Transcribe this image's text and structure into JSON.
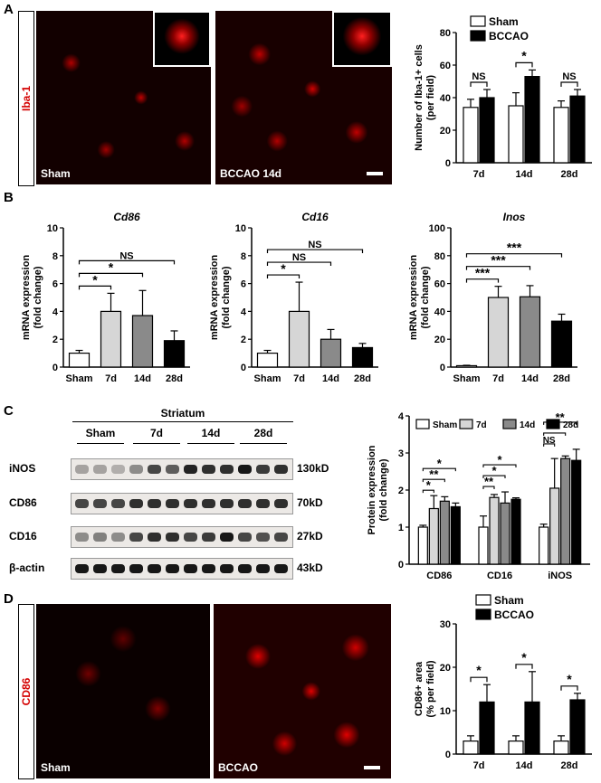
{
  "panels": {
    "A": "A",
    "B": "B",
    "C": "C",
    "D": "D"
  },
  "panelA": {
    "stain_label": "Iba-1",
    "image_sham": "Sham",
    "image_bccao": "BCCAO 14d"
  },
  "panelD": {
    "stain_label": "CD86",
    "image_sham": "Sham",
    "image_bccao": "BCCAO"
  },
  "panelC": {
    "region": "Striatum",
    "groups": [
      "Sham",
      "7d",
      "14d",
      "28d"
    ],
    "blots": [
      {
        "name": "iNOS",
        "size": "130kD"
      },
      {
        "name": "CD86",
        "size": "70kD"
      },
      {
        "name": "CD16",
        "size": "27kD"
      },
      {
        "name": "β-actin",
        "size": "43kD"
      }
    ]
  },
  "chart_data": [
    {
      "id": "A_iba1",
      "type": "bar",
      "categories": [
        "7d",
        "14d",
        "28d"
      ],
      "series": [
        {
          "name": "Sham",
          "values": [
            34,
            35,
            34
          ],
          "errors": [
            5,
            8,
            4
          ],
          "color": "#ffffff"
        },
        {
          "name": "BCCAO",
          "values": [
            40,
            53,
            41
          ],
          "errors": [
            5,
            4,
            4
          ],
          "color": "#000000"
        }
      ],
      "ylabel_lines": [
        "Number of Iba-1+ cells",
        "(per field)"
      ],
      "ylim": [
        0,
        80
      ],
      "yticks": [
        0,
        20,
        40,
        60,
        80
      ],
      "sig": [
        "NS",
        "*",
        "NS"
      ],
      "legend": "top"
    },
    {
      "id": "B_cd86",
      "type": "bar",
      "title": "Cd86",
      "categories": [
        "Sham",
        "7d",
        "14d",
        "28d"
      ],
      "values": [
        1.0,
        4.0,
        3.7,
        1.9
      ],
      "errors": [
        0.2,
        1.3,
        1.8,
        0.7
      ],
      "colors": [
        "#ffffff",
        "#d6d6d6",
        "#8a8a8a",
        "#000000"
      ],
      "ylabel_lines": [
        "mRNA expression",
        "(fold change)"
      ],
      "ylim": [
        0,
        10
      ],
      "yticks": [
        0,
        2,
        4,
        6,
        8,
        10
      ],
      "brackets": [
        {
          "from": 0,
          "to": 1,
          "label": "*"
        },
        {
          "from": 0,
          "to": 2,
          "label": "*"
        },
        {
          "from": 0,
          "to": 3,
          "label": "NS"
        }
      ]
    },
    {
      "id": "B_cd16",
      "type": "bar",
      "title": "Cd16",
      "categories": [
        "Sham",
        "7d",
        "14d",
        "28d"
      ],
      "values": [
        1.0,
        4.0,
        2.0,
        1.4
      ],
      "errors": [
        0.2,
        2.1,
        0.7,
        0.3
      ],
      "colors": [
        "#ffffff",
        "#d6d6d6",
        "#8a8a8a",
        "#000000"
      ],
      "ylabel_lines": [
        "mRNA expression",
        "(fold change)"
      ],
      "ylim": [
        0,
        10
      ],
      "yticks": [
        0,
        2,
        4,
        6,
        8,
        10
      ],
      "brackets": [
        {
          "from": 0,
          "to": 1,
          "label": "*"
        },
        {
          "from": 0,
          "to": 2,
          "label": "NS"
        },
        {
          "from": 0,
          "to": 3,
          "label": "NS"
        }
      ]
    },
    {
      "id": "B_inos",
      "type": "bar",
      "title": "Inos",
      "categories": [
        "Sham",
        "7d",
        "14d",
        "28d"
      ],
      "values": [
        1,
        50,
        50.5,
        33
      ],
      "errors": [
        0.3,
        8,
        8,
        5
      ],
      "colors": [
        "#ffffff",
        "#d6d6d6",
        "#8a8a8a",
        "#000000"
      ],
      "ylabel_lines": [
        "mRNA expression",
        "(fold change)"
      ],
      "ylim": [
        0,
        100
      ],
      "yticks": [
        0,
        20,
        40,
        60,
        80,
        100
      ],
      "brackets": [
        {
          "from": 0,
          "to": 1,
          "label": "***"
        },
        {
          "from": 0,
          "to": 2,
          "label": "***"
        },
        {
          "from": 0,
          "to": 3,
          "label": "***"
        }
      ]
    },
    {
      "id": "C_protein",
      "type": "bar",
      "categories": [
        "CD86",
        "CD16",
        "iNOS"
      ],
      "series": [
        {
          "name": "Sham",
          "values": [
            1.0,
            1.0,
            1.0
          ],
          "errors": [
            0.05,
            0.3,
            0.08
          ],
          "color": "#ffffff"
        },
        {
          "name": "7d",
          "values": [
            1.5,
            1.8,
            2.05
          ],
          "errors": [
            0.35,
            0.08,
            0.8
          ],
          "color": "#d6d6d6"
        },
        {
          "name": "14d",
          "values": [
            1.7,
            1.65,
            2.85
          ],
          "errors": [
            0.12,
            0.3,
            0.07
          ],
          "color": "#8a8a8a"
        },
        {
          "name": "28d",
          "values": [
            1.55,
            1.75,
            2.8
          ],
          "errors": [
            0.1,
            0.04,
            0.3
          ],
          "color": "#000000"
        }
      ],
      "ylabel_lines": [
        "Protein expression",
        "(fold change)"
      ],
      "ylim": [
        0,
        4
      ],
      "yticks": [
        0,
        1,
        2,
        3,
        4
      ],
      "sig_groups": [
        [
          "*",
          "**",
          "*"
        ],
        [
          "**",
          "*",
          "*"
        ],
        [
          "NS",
          "**",
          "**"
        ]
      ],
      "legend": "top"
    },
    {
      "id": "D_cd86",
      "type": "bar",
      "categories": [
        "7d",
        "14d",
        "28d"
      ],
      "series": [
        {
          "name": "Sham",
          "values": [
            3,
            3,
            3
          ],
          "errors": [
            1.2,
            1.2,
            1.2
          ],
          "color": "#ffffff"
        },
        {
          "name": "BCCAO",
          "values": [
            12,
            12,
            12.5
          ],
          "errors": [
            4,
            7,
            1.5
          ],
          "color": "#000000"
        }
      ],
      "ylabel_lines": [
        "CD86+ area",
        "(% per field)"
      ],
      "ylim": [
        0,
        30
      ],
      "yticks": [
        0,
        10,
        20,
        30
      ],
      "sig": [
        "*",
        "*",
        "*"
      ],
      "legend": "top"
    }
  ]
}
